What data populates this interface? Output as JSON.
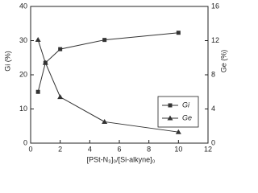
{
  "chart_data": {
    "type": "line",
    "x_label": "[PSt-N₃]₀/[Si-alkyne]₀",
    "y_label": "Gi (%)",
    "y2_label": "Ge (%)",
    "x": [
      0.5,
      1,
      2,
      5,
      10
    ],
    "xlim": [
      0,
      12
    ],
    "xticks": [
      0,
      2,
      4,
      6,
      8,
      10,
      12
    ],
    "ylim": [
      0,
      40
    ],
    "yticks": [
      0,
      10,
      20,
      30,
      40
    ],
    "y2lim": [
      0,
      16
    ],
    "y2ticks": [
      0,
      4,
      8,
      12,
      16
    ],
    "legend": "lower right",
    "series": [
      {
        "name": "Gi",
        "color": "#333333",
        "marker": "square",
        "values": [
          15,
          23.5,
          27.5,
          30.2,
          32.3
        ]
      },
      {
        "name": "Ge",
        "color": "#333333",
        "marker": "triangle",
        "axis": "y2",
        "values": [
          12.1,
          9.4,
          5.4,
          2.5,
          1.3
        ]
      }
    ]
  }
}
